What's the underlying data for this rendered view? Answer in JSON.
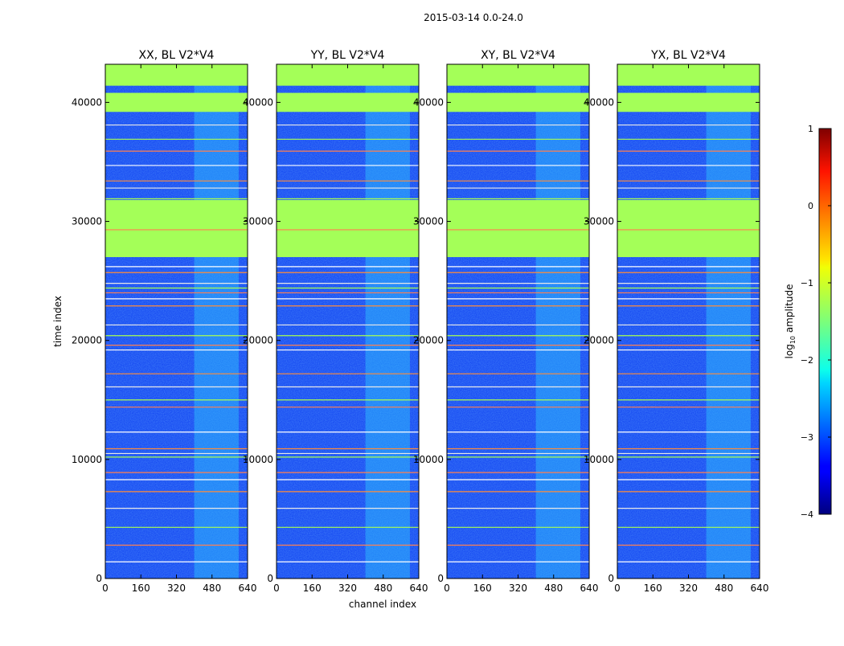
{
  "chart_data": {
    "type": "heatmap",
    "suptitle": "2015-03-14 0.0-24.0",
    "xlabel": "channel index",
    "ylabel": "time index",
    "xlim": [
      0,
      640
    ],
    "ylim": [
      0,
      43200
    ],
    "xticks": [
      0,
      160,
      320,
      480,
      640
    ],
    "yticks": [
      0,
      10000,
      20000,
      30000,
      40000
    ],
    "panels": [
      {
        "title": "XX, BL V2*V4",
        "pol": "XX"
      },
      {
        "title": "YY, BL V2*V4",
        "pol": "YY"
      },
      {
        "title": "XY, BL V2*V4",
        "pol": "XY"
      },
      {
        "title": "YX, BL V2*V4",
        "pol": "YX"
      }
    ],
    "colorbar": {
      "label": "log10 amplitude",
      "label_base": "log",
      "label_sub": "10",
      "label_rest": " amplitude",
      "range": [
        -4,
        1
      ],
      "ticks": [
        1,
        0,
        -1,
        -2,
        -3,
        -4
      ],
      "tick_labels": [
        "1",
        "0",
        "−1",
        "−2",
        "−3",
        "−4"
      ],
      "colormap": "jet"
    },
    "rfi_channel_band": [
      400,
      600
    ],
    "flagged_time_ranges": [
      [
        27000,
        31800
      ],
      [
        39200,
        40800
      ],
      [
        41400,
        43200
      ]
    ],
    "horizontal_line_times": [
      1400,
      2800,
      4300,
      5900,
      7300,
      8300,
      8900,
      10200,
      10500,
      10900,
      12300,
      14400,
      15000,
      16100,
      17200,
      19200,
      19600,
      20400,
      21300,
      22900,
      23500,
      24000,
      24400,
      24800,
      25700,
      26200,
      29300,
      31900,
      32800,
      33400,
      34700,
      35900,
      36900,
      38100
    ]
  }
}
